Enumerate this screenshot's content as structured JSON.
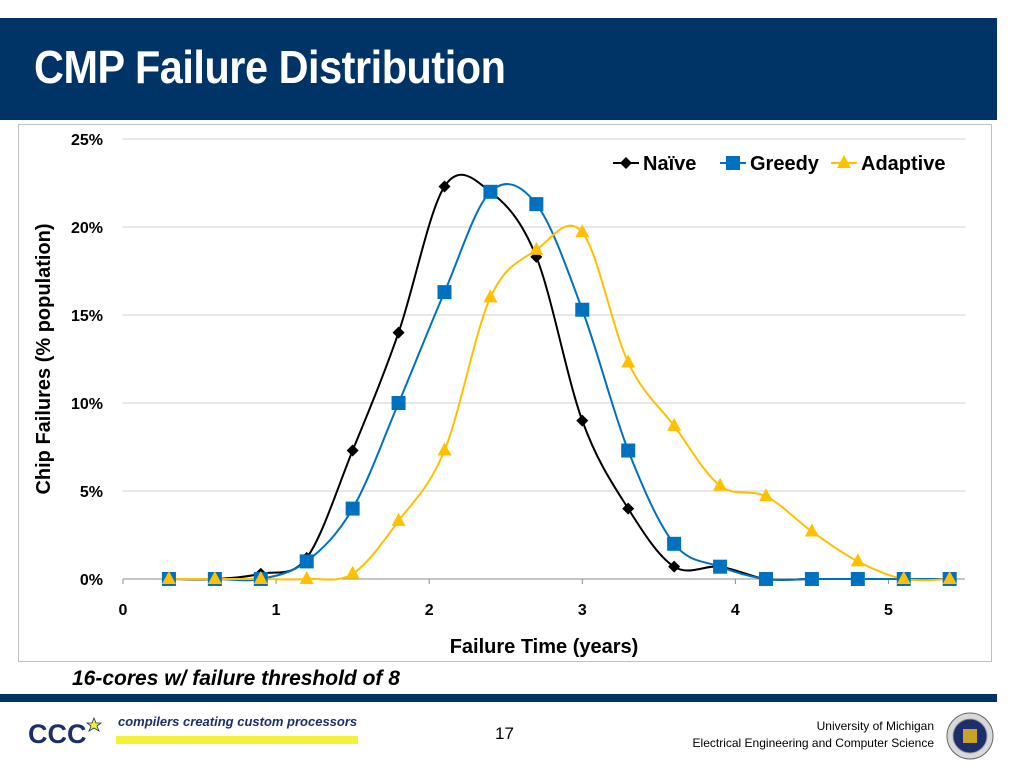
{
  "title": "CMP Failure Distribution",
  "caption": "16-cores w/ failure threshold of 8",
  "footer": {
    "logo_text": "CCC",
    "tagline": "compilers creating custom processors",
    "page_number": "17",
    "university": "University of Michigan",
    "department": "Electrical Engineering and Computer Science"
  },
  "colors": {
    "title_bar": "#003366",
    "naive": "#000000",
    "greedy": "#0070C0",
    "adaptive": "#FFC000"
  },
  "chart_data": {
    "type": "line",
    "xlabel": "Failure Time (years)",
    "ylabel": "Chip Failures (%  population)",
    "xlim": [
      0,
      5.5
    ],
    "ylim": [
      0,
      25
    ],
    "x_ticks": [
      "0",
      "1",
      "2",
      "3",
      "4",
      "5"
    ],
    "y_ticks": [
      "0%",
      "5%",
      "10%",
      "15%",
      "20%",
      "25%"
    ],
    "grid": true,
    "legend_position": "top-right",
    "series": [
      {
        "name": "Naïve",
        "marker": "diamond",
        "points": [
          [
            0.3,
            0
          ],
          [
            0.6,
            0
          ],
          [
            0.9,
            0.3
          ],
          [
            1.2,
            1.2
          ],
          [
            1.5,
            7.3
          ],
          [
            1.8,
            14
          ],
          [
            2.1,
            22.3
          ],
          [
            2.4,
            22
          ],
          [
            2.7,
            18.3
          ],
          [
            3.0,
            9
          ],
          [
            3.3,
            4
          ],
          [
            3.6,
            0.7
          ],
          [
            3.9,
            0.7
          ],
          [
            4.2,
            0
          ],
          [
            4.5,
            0
          ],
          [
            4.8,
            0
          ],
          [
            5.1,
            0
          ],
          [
            5.4,
            0
          ]
        ]
      },
      {
        "name": "Greedy",
        "marker": "square",
        "points": [
          [
            0.3,
            0
          ],
          [
            0.6,
            0
          ],
          [
            0.9,
            0
          ],
          [
            1.2,
            1
          ],
          [
            1.5,
            4
          ],
          [
            1.8,
            10
          ],
          [
            2.1,
            16.3
          ],
          [
            2.4,
            22
          ],
          [
            2.7,
            21.3
          ],
          [
            3.0,
            15.3
          ],
          [
            3.3,
            7.3
          ],
          [
            3.6,
            2
          ],
          [
            3.9,
            0.7
          ],
          [
            4.2,
            0
          ],
          [
            4.5,
            0
          ],
          [
            4.8,
            0
          ],
          [
            5.1,
            0
          ],
          [
            5.4,
            0
          ]
        ]
      },
      {
        "name": "Adaptive",
        "marker": "triangle",
        "points": [
          [
            0.3,
            0
          ],
          [
            0.6,
            0
          ],
          [
            0.9,
            0
          ],
          [
            1.2,
            0
          ],
          [
            1.5,
            0.3
          ],
          [
            1.8,
            3.3
          ],
          [
            2.1,
            7.3
          ],
          [
            2.4,
            16
          ],
          [
            2.7,
            18.7
          ],
          [
            3.0,
            19.7
          ],
          [
            3.3,
            12.3
          ],
          [
            3.6,
            8.7
          ],
          [
            3.9,
            5.3
          ],
          [
            4.2,
            4.7
          ],
          [
            4.5,
            2.7
          ],
          [
            4.8,
            1
          ],
          [
            5.1,
            0
          ],
          [
            5.4,
            0
          ]
        ]
      }
    ]
  }
}
